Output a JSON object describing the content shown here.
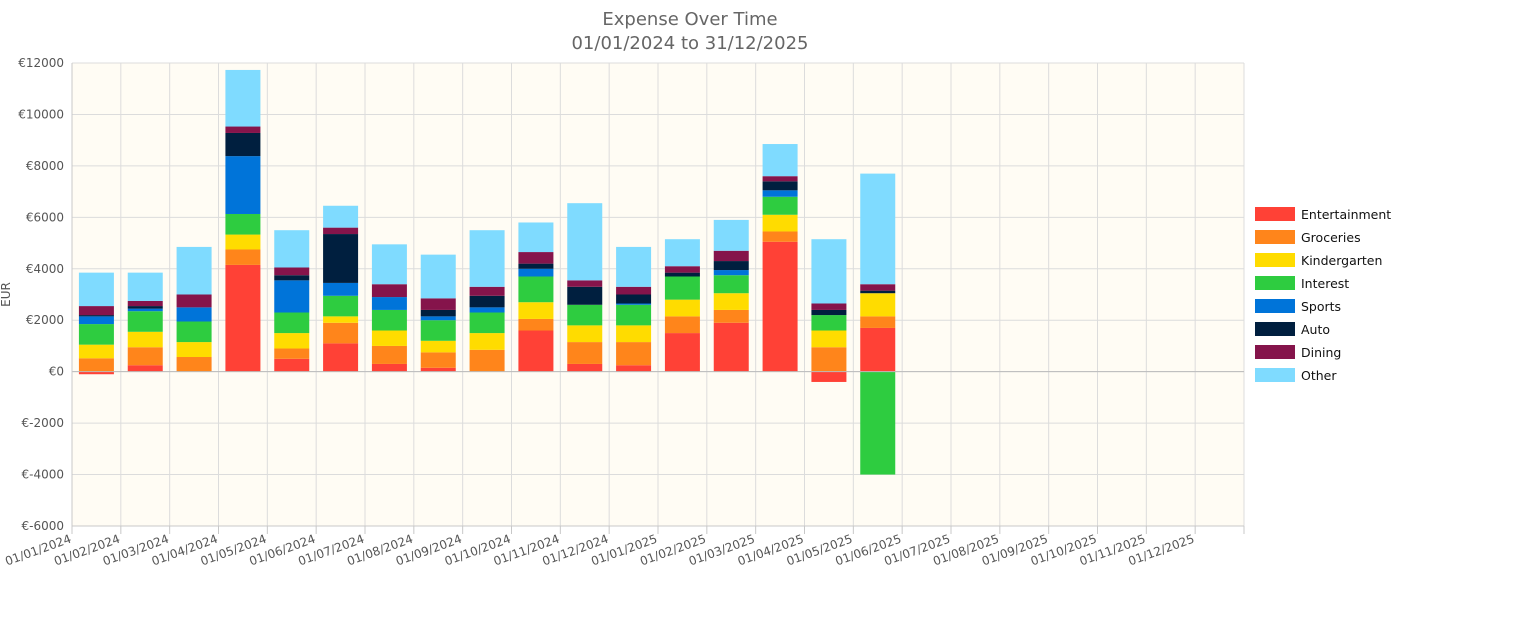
{
  "chart_data": {
    "type": "bar",
    "stacked": true,
    "title": "Expense Over Time",
    "subtitle": "01/01/2024 to 31/12/2025",
    "xlabel": "",
    "ylabel": "EUR",
    "ylim": [
      -6000,
      12000
    ],
    "yticks": [
      12000,
      10000,
      8000,
      6000,
      4000,
      2000,
      0,
      -2000,
      -4000,
      -6000
    ],
    "ytick_labels": [
      "€12000",
      "€10000",
      "€8000",
      "€6000",
      "€4000",
      "€2000",
      "€0",
      "€-2000",
      "€-4000",
      "€-6000"
    ],
    "grid": true,
    "legend_position": "right",
    "categories": [
      "01/01/2024",
      "01/02/2024",
      "01/03/2024",
      "01/04/2024",
      "01/05/2024",
      "01/06/2024",
      "01/07/2024",
      "01/08/2024",
      "01/09/2024",
      "01/10/2024",
      "01/11/2024",
      "01/12/2024",
      "01/01/2025",
      "01/02/2025",
      "01/03/2025",
      "01/04/2025",
      "01/05/2025",
      "01/06/2025",
      "01/07/2025",
      "01/08/2025",
      "01/09/2025",
      "01/10/2025",
      "01/11/2025",
      "01/12/2025"
    ],
    "series": [
      {
        "name": "Entertainment",
        "color": "#ff4136",
        "values": [
          -100,
          250,
          0,
          4150,
          500,
          1100,
          300,
          150,
          0,
          1600,
          300,
          250,
          1500,
          1900,
          5050,
          -400,
          1700,
          0,
          0,
          0,
          0,
          0,
          0,
          0
        ]
      },
      {
        "name": "Groceries",
        "color": "#ff851b",
        "values": [
          520,
          700,
          570,
          600,
          400,
          800,
          700,
          600,
          850,
          450,
          850,
          900,
          650,
          500,
          400,
          950,
          450,
          0,
          0,
          0,
          0,
          0,
          0,
          0
        ]
      },
      {
        "name": "Kindergarten",
        "color": "#ffdc00",
        "values": [
          530,
          600,
          580,
          580,
          600,
          250,
          600,
          450,
          650,
          650,
          650,
          650,
          650,
          650,
          650,
          650,
          900,
          0,
          0,
          0,
          0,
          0,
          0,
          0
        ]
      },
      {
        "name": "Interest",
        "color": "#2ecc40",
        "values": [
          800,
          800,
          800,
          800,
          800,
          800,
          800,
          800,
          800,
          1000,
          800,
          800,
          900,
          700,
          700,
          600,
          -4000,
          0,
          0,
          0,
          0,
          0,
          0,
          0
        ]
      },
      {
        "name": "Sports",
        "color": "#0074d9",
        "values": [
          300,
          100,
          550,
          2250,
          1250,
          500,
          500,
          150,
          200,
          300,
          0,
          50,
          0,
          200,
          250,
          0,
          0,
          0,
          0,
          0,
          0,
          0,
          0,
          0
        ]
      },
      {
        "name": "Auto",
        "color": "#001f3f",
        "values": [
          50,
          100,
          0,
          900,
          200,
          1900,
          0,
          250,
          450,
          200,
          700,
          350,
          150,
          350,
          350,
          200,
          100,
          0,
          0,
          0,
          0,
          0,
          0,
          0
        ]
      },
      {
        "name": "Dining",
        "color": "#85144b",
        "values": [
          350,
          200,
          500,
          250,
          300,
          250,
          500,
          450,
          350,
          450,
          250,
          300,
          250,
          400,
          200,
          250,
          250,
          0,
          0,
          0,
          0,
          0,
          0,
          0
        ]
      },
      {
        "name": "Other",
        "color": "#7fdbff",
        "values": [
          1300,
          1100,
          1850,
          2200,
          1450,
          850,
          1550,
          1700,
          2200,
          1150,
          3000,
          1550,
          1050,
          1200,
          1250,
          2500,
          4300,
          0,
          0,
          0,
          0,
          0,
          0,
          0
        ]
      }
    ]
  }
}
